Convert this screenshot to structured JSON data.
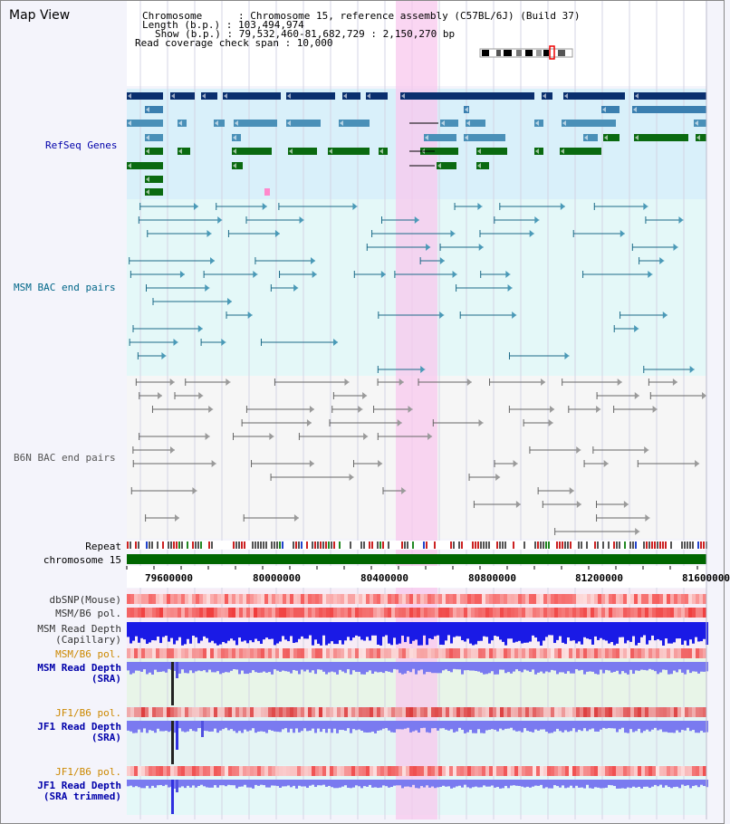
{
  "title": "Map View",
  "info": {
    "chromosome": "Chromosome      : Chromosome 15, reference assembly (C57BL/6J) (Build 37)",
    "length": "Length (b.p.) : 103,494,974",
    "show": "Show (b.p.) : 79,532,460-81,682,729 : 2,150,270 bp",
    "coverage": "Read coverage check span : 10,000"
  },
  "tracks": {
    "refseq": "RefSeq Genes",
    "msm_bac": "MSM BAC end pairs",
    "b6n_bac": "B6N BAC end pairs",
    "repeat": "Repeat",
    "chromosome": "chromosome 15",
    "dbsnp": "dbSNP(Mouse)",
    "msm_b6_pol_1": "MSM/B6 pol.",
    "msm_read_depth_cap_1": "MSM Read Depth",
    "msm_read_depth_cap_2": "(Capillary)",
    "msm_b6_pol_2": "MSM/B6 pol.",
    "msm_read_depth_sra_1": "MSM Read Depth",
    "msm_read_depth_sra_2": "(SRA)",
    "jf1_b6_pol_1": "JF1/B6 pol.",
    "jf1_read_depth_sra_1": "JF1 Read Depth",
    "jf1_read_depth_sra_2": "(SRA)",
    "jf1_b6_pol_2": "JF1/B6 pol.",
    "jf1_read_depth_trim_1": "JF1 Read Depth",
    "jf1_read_depth_trim_2": "(SRA trimmed)"
  },
  "axis_ticks": [
    "79600000",
    "80000000",
    "80400000",
    "80800000",
    "81200000",
    "81600000"
  ],
  "colors": {
    "refseq_label": "#0000aa",
    "bac_msm_label": "#006688",
    "bac_b6n_label": "#555555",
    "pol_label": "#cc8800",
    "depth_label": "#0000aa",
    "highlight": "#f8d0f0",
    "chromosome_bar": "#006600"
  }
}
